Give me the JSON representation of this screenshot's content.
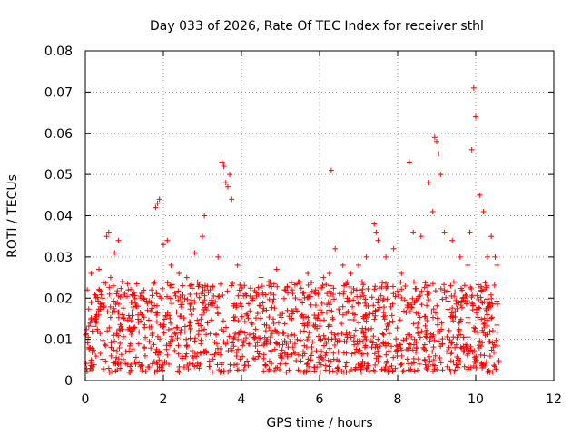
{
  "chart_data": {
    "type": "scatter",
    "title": "Day 033 of 2026, Rate Of TEC Index for receiver sthl",
    "xlabel": "GPS time / hours",
    "ylabel": "ROTI / TECUs",
    "xlim": [
      0,
      12
    ],
    "ylim": [
      0,
      0.08
    ],
    "xticks": [
      "0",
      "2",
      "4",
      "6",
      "8",
      "10",
      "12"
    ],
    "yticks": [
      "0",
      "0.01",
      "0.02",
      "0.03",
      "0.04",
      "0.05",
      "0.06",
      "0.07",
      "0.08"
    ],
    "grid": true,
    "marker": "+",
    "color": "#ff0000",
    "series": [
      {
        "name": "ROTI",
        "x": [
          0.05,
          0.15,
          0.25,
          0.35,
          0.45,
          0.55,
          0.6,
          0.65,
          0.75,
          0.85,
          0.95,
          1.1,
          1.3,
          1.5,
          1.7,
          1.8,
          1.85,
          1.9,
          1.95,
          2.0,
          2.1,
          2.2,
          2.4,
          2.6,
          2.8,
          3.0,
          3.05,
          3.2,
          3.4,
          3.5,
          3.55,
          3.6,
          3.65,
          3.7,
          3.75,
          3.9,
          4.1,
          4.3,
          4.5,
          4.7,
          4.9,
          5.1,
          5.3,
          5.5,
          5.7,
          5.9,
          6.1,
          6.25,
          6.3,
          6.4,
          6.6,
          6.8,
          7.0,
          7.2,
          7.4,
          7.45,
          7.5,
          7.7,
          7.9,
          8.1,
          8.3,
          8.4,
          8.6,
          8.8,
          8.9,
          8.95,
          9.0,
          9.05,
          9.1,
          9.2,
          9.4,
          9.6,
          9.8,
          9.85,
          9.9,
          9.95,
          10.0,
          10.1,
          10.2,
          10.3,
          10.4,
          10.5,
          10.55
        ],
        "y": [
          0.022,
          0.026,
          0.015,
          0.027,
          0.02,
          0.035,
          0.036,
          0.025,
          0.031,
          0.034,
          0.024,
          0.022,
          0.018,
          0.02,
          0.022,
          0.042,
          0.043,
          0.044,
          0.02,
          0.033,
          0.034,
          0.028,
          0.026,
          0.025,
          0.031,
          0.035,
          0.04,
          0.022,
          0.03,
          0.053,
          0.052,
          0.048,
          0.047,
          0.05,
          0.044,
          0.028,
          0.021,
          0.02,
          0.025,
          0.024,
          0.027,
          0.022,
          0.022,
          0.024,
          0.026,
          0.022,
          0.025,
          0.026,
          0.051,
          0.032,
          0.028,
          0.026,
          0.028,
          0.03,
          0.038,
          0.036,
          0.034,
          0.03,
          0.032,
          0.026,
          0.053,
          0.036,
          0.035,
          0.048,
          0.041,
          0.059,
          0.058,
          0.055,
          0.05,
          0.036,
          0.034,
          0.03,
          0.028,
          0.036,
          0.056,
          0.071,
          0.064,
          0.045,
          0.041,
          0.03,
          0.035,
          0.03,
          0.028
        ]
      }
    ],
    "dense_band": {
      "x_range": [
        0.0,
        10.6
      ],
      "y_range": [
        0.002,
        0.024
      ]
    }
  }
}
